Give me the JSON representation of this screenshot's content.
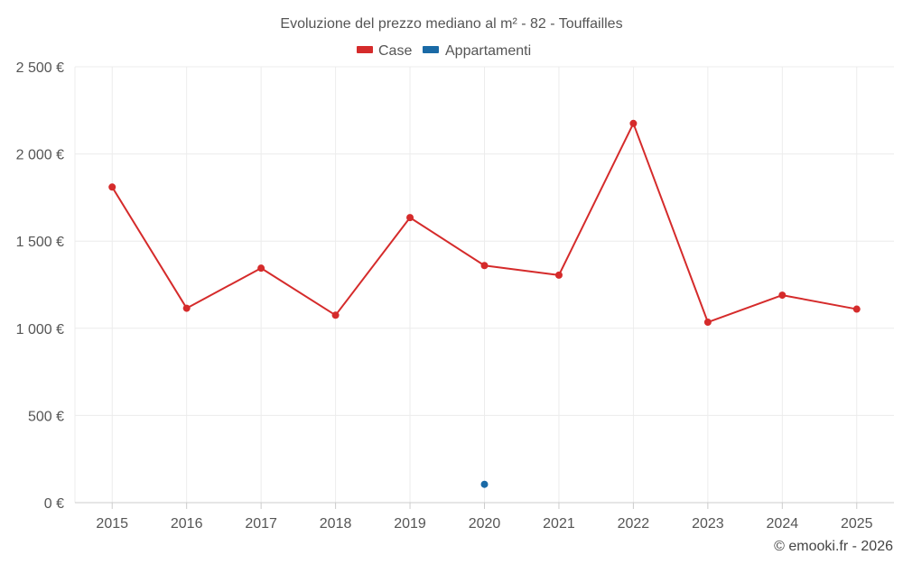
{
  "chart_data": {
    "type": "line",
    "title": "Evoluzione del prezzo mediano al m² - 82 - Touffailles",
    "categories": [
      "2015",
      "2016",
      "2017",
      "2018",
      "2019",
      "2020",
      "2021",
      "2022",
      "2023",
      "2024",
      "2025"
    ],
    "series": [
      {
        "name": "Case",
        "color": "#d52b2b",
        "values": [
          1810,
          1115,
          1345,
          1075,
          1635,
          1360,
          1305,
          2175,
          1035,
          1190,
          1110
        ]
      },
      {
        "name": "Appartamenti",
        "color": "#1a6aa6",
        "values": [
          null,
          null,
          null,
          null,
          null,
          105,
          null,
          null,
          null,
          null,
          null
        ]
      }
    ],
    "yticks": [
      0,
      500,
      1000,
      1500,
      2000,
      2500
    ],
    "ytick_labels": [
      "0 €",
      "500 €",
      "1 000 €",
      "1 500 €",
      "2 000 €",
      "2 500 €"
    ],
    "ylim": [
      0,
      2500
    ],
    "xlabel": "",
    "ylabel": "",
    "grid": true,
    "legend_position": "top-center"
  },
  "footer": {
    "credit": "© emooki.fr - 2026"
  }
}
